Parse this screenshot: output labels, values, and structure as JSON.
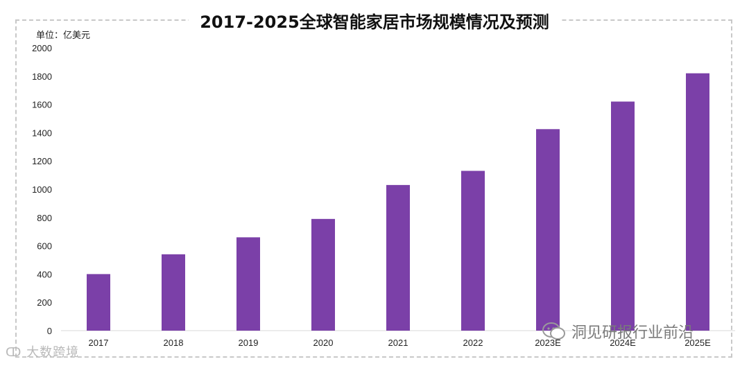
{
  "title": "2017-2025全球智能家居市场规模情况及预测",
  "unit_label": "单位：亿美元",
  "watermarks": {
    "bottom_left": "大数跨境",
    "bottom_right": "洞见研报行业前沿"
  },
  "colors": {
    "bar": "#7B40A8",
    "grid": "#d9d9d9",
    "axis_text": "#222222"
  },
  "chart_data": {
    "type": "bar",
    "title": "2017-2025全球智能家居市场规模情况及预测",
    "xlabel": "",
    "ylabel": "单位：亿美元",
    "categories": [
      "2017",
      "2018",
      "2019",
      "2020",
      "2021",
      "2022",
      "2023E",
      "2024E",
      "2025E"
    ],
    "values": [
      400,
      540,
      660,
      790,
      1030,
      1130,
      1425,
      1620,
      1820
    ],
    "ylim": [
      0,
      2000
    ],
    "yticks": [
      "0",
      "200",
      "400",
      "600",
      "800",
      "1000",
      "1200",
      "1400",
      "1600",
      "1800",
      "2000"
    ],
    "grid": false,
    "legend": "none"
  }
}
